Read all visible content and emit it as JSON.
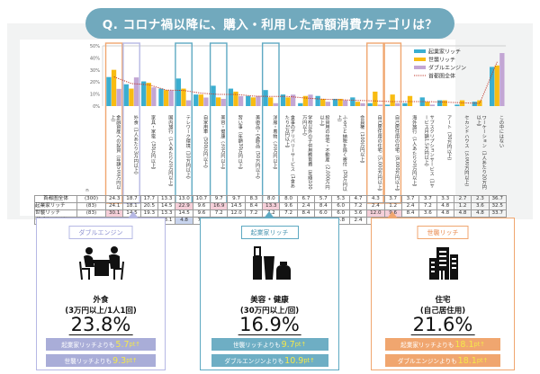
{
  "title": "Q. コロナ禍以降に、購入・利用した高額消費カテゴリは？",
  "colors": {
    "kigyoka": "#3aaed0",
    "seshu": "#f8bc12",
    "double": "#c3a6d4",
    "total_line": "#c0392b",
    "frame_orange": "#f0a66f",
    "frame_lavender": "#b6b8e4",
    "frame_blue": "#5ea9c2",
    "highlight_pink": "#f5cfd9",
    "highlight_blue": "#5b66c8"
  },
  "chart_data": {
    "type": "bar",
    "title": "",
    "xlabel": "",
    "ylabel": "",
    "ylim": [
      0,
      50
    ],
    "yticks": [
      "0%",
      "10%",
      "20%",
      "30%",
      "40%",
      "50%"
    ],
    "grid": false,
    "legend_position": "top-right",
    "categories": [
      "金融資産への投資（年額500万円以上）",
      "外食（1人あたり3万円以上）",
      "家具・家電（30万円以上）",
      "国内旅行（1人あたり20万円以上）",
      "テレワーク環境（10万円以上）",
      "自家用車（500万円以上）",
      "美容・健康（30万円以上）",
      "習い事（年額30万円以上）",
      "美術品・宝飾品（50万円以上）",
      "洋服・着物（30万円以上）",
      "食事のデリバリーサービス（1食あたり1万円以上）",
      "学校以外の子供用教育費（年額100万円以上）",
      "投資用の住宅・不動産（2,000万円以上）",
      "ふるさと納税を除く寄付（30万円以上）",
      "会員権（100万円以上）",
      "自己居住用の住宅（5,000万円以上）",
      "自己居住用の住宅（8,000万円以上）",
      "海外旅行（1人あたり50万円以上）",
      "サブスクリプションサービス（1サービス月額1.5万円以上）",
      "アート（30万円以上）",
      "セカンドハウス（3,000万円以上）",
      "ワーケーション（1人あたり20万円以上）",
      "この中にはない"
    ],
    "series": [
      {
        "name": "起業家リッチ",
        "type": "bar",
        "n": "(83)",
        "values": [
          24.1,
          18.1,
          20.5,
          14.5,
          22.9,
          9.6,
          16.9,
          14.5,
          8.4,
          13.3,
          9.6,
          2.4,
          8.4,
          6.0,
          7.2,
          2.4,
          1.2,
          2.4,
          7.2,
          4.8,
          1.2,
          3.6,
          32.5
        ]
      },
      {
        "name": "世襲リッチ",
        "type": "bar",
        "n": "(83)",
        "values": [
          30.1,
          14.5,
          19.3,
          13.3,
          14.5,
          9.6,
          7.2,
          12.0,
          7.2,
          7.2,
          7.2,
          8.4,
          6.0,
          6.0,
          3.6,
          12.0,
          9.6,
          8.4,
          3.6,
          4.8,
          4.8,
          4.8,
          33.7
        ]
      },
      {
        "name": "ダブルエンジン",
        "type": "bar",
        "n": "(84)",
        "values": [
          14.3,
          23.8,
          15.5,
          13.1,
          4.8,
          7.1,
          6.0,
          8.3,
          8.3,
          2.4,
          9.5,
          9.5,
          3.6,
          4.8,
          2.4,
          1.2,
          2.4,
          null,
          1.2,
          null,
          null,
          null,
          44.0
        ]
      },
      {
        "name": "首都圏全体",
        "type": "line",
        "n": "(300)",
        "values": [
          24.3,
          18.7,
          17.7,
          13.3,
          13.0,
          10.7,
          9.7,
          9.7,
          8.3,
          8.0,
          8.0,
          6.7,
          5.7,
          5.3,
          4.7,
          4.3,
          3.7,
          3.7,
          3.7,
          3.3,
          2.7,
          2.3,
          36.7
        ]
      }
    ],
    "table": {
      "n_header": "n",
      "row_order": [
        "首都圏全体",
        "起業家リッチ",
        "世襲リッチ",
        "ダブルエンジン"
      ],
      "highlighted_pink": [
        [
          2,
          0
        ],
        [
          3,
          1
        ],
        [
          1,
          4
        ],
        [
          1,
          6
        ],
        [
          1,
          9
        ],
        [
          2,
          15
        ],
        [
          2,
          16
        ],
        [
          3,
          22
        ]
      ],
      "highlighted_blue": [
        [
          3,
          0
        ]
      ],
      "highlighted_lightblue": [
        [
          3,
          4
        ],
        [
          3,
          9
        ]
      ]
    },
    "frames": {
      "orange": [
        0,
        15,
        16
      ],
      "lavender": [
        1
      ],
      "blue": [
        4,
        6,
        9
      ]
    },
    "annotation": "※首都圏全体で降順ソート"
  },
  "cards": [
    {
      "badge": "ダブルエンジン",
      "icon": "dining-icon",
      "category": "外食",
      "condition": "(3万円以上/1人1回)",
      "percent": "23.8%",
      "comparisons": [
        {
          "text": "起業家リッチよりも",
          "value": "5.7",
          "unit": "pt↑"
        },
        {
          "text": "世襲リッチよりも",
          "value": "9.3",
          "unit": "pt↑"
        }
      ]
    },
    {
      "badge": "起業家リッチ",
      "icon": "cosmetics-icon",
      "category": "美容・健康",
      "condition": "(30万円以上/回)",
      "percent": "16.9%",
      "comparisons": [
        {
          "text": "世襲リッチよりも",
          "value": "9.7",
          "unit": "pt↑"
        },
        {
          "text": "ダブルエンジンよりも",
          "value": "10.9",
          "unit": "pt↑"
        }
      ]
    },
    {
      "badge": "世襲リッチ",
      "icon": "building-icon",
      "category": "住宅",
      "condition": "(自己居住用)",
      "percent": "21.6%",
      "comparisons": [
        {
          "text": "起業家リッチよりも",
          "value": "18.1",
          "unit": "pt↑"
        },
        {
          "text": "ダブルエンジンよりも",
          "value": "18.1",
          "unit": "pt↑"
        }
      ]
    }
  ]
}
